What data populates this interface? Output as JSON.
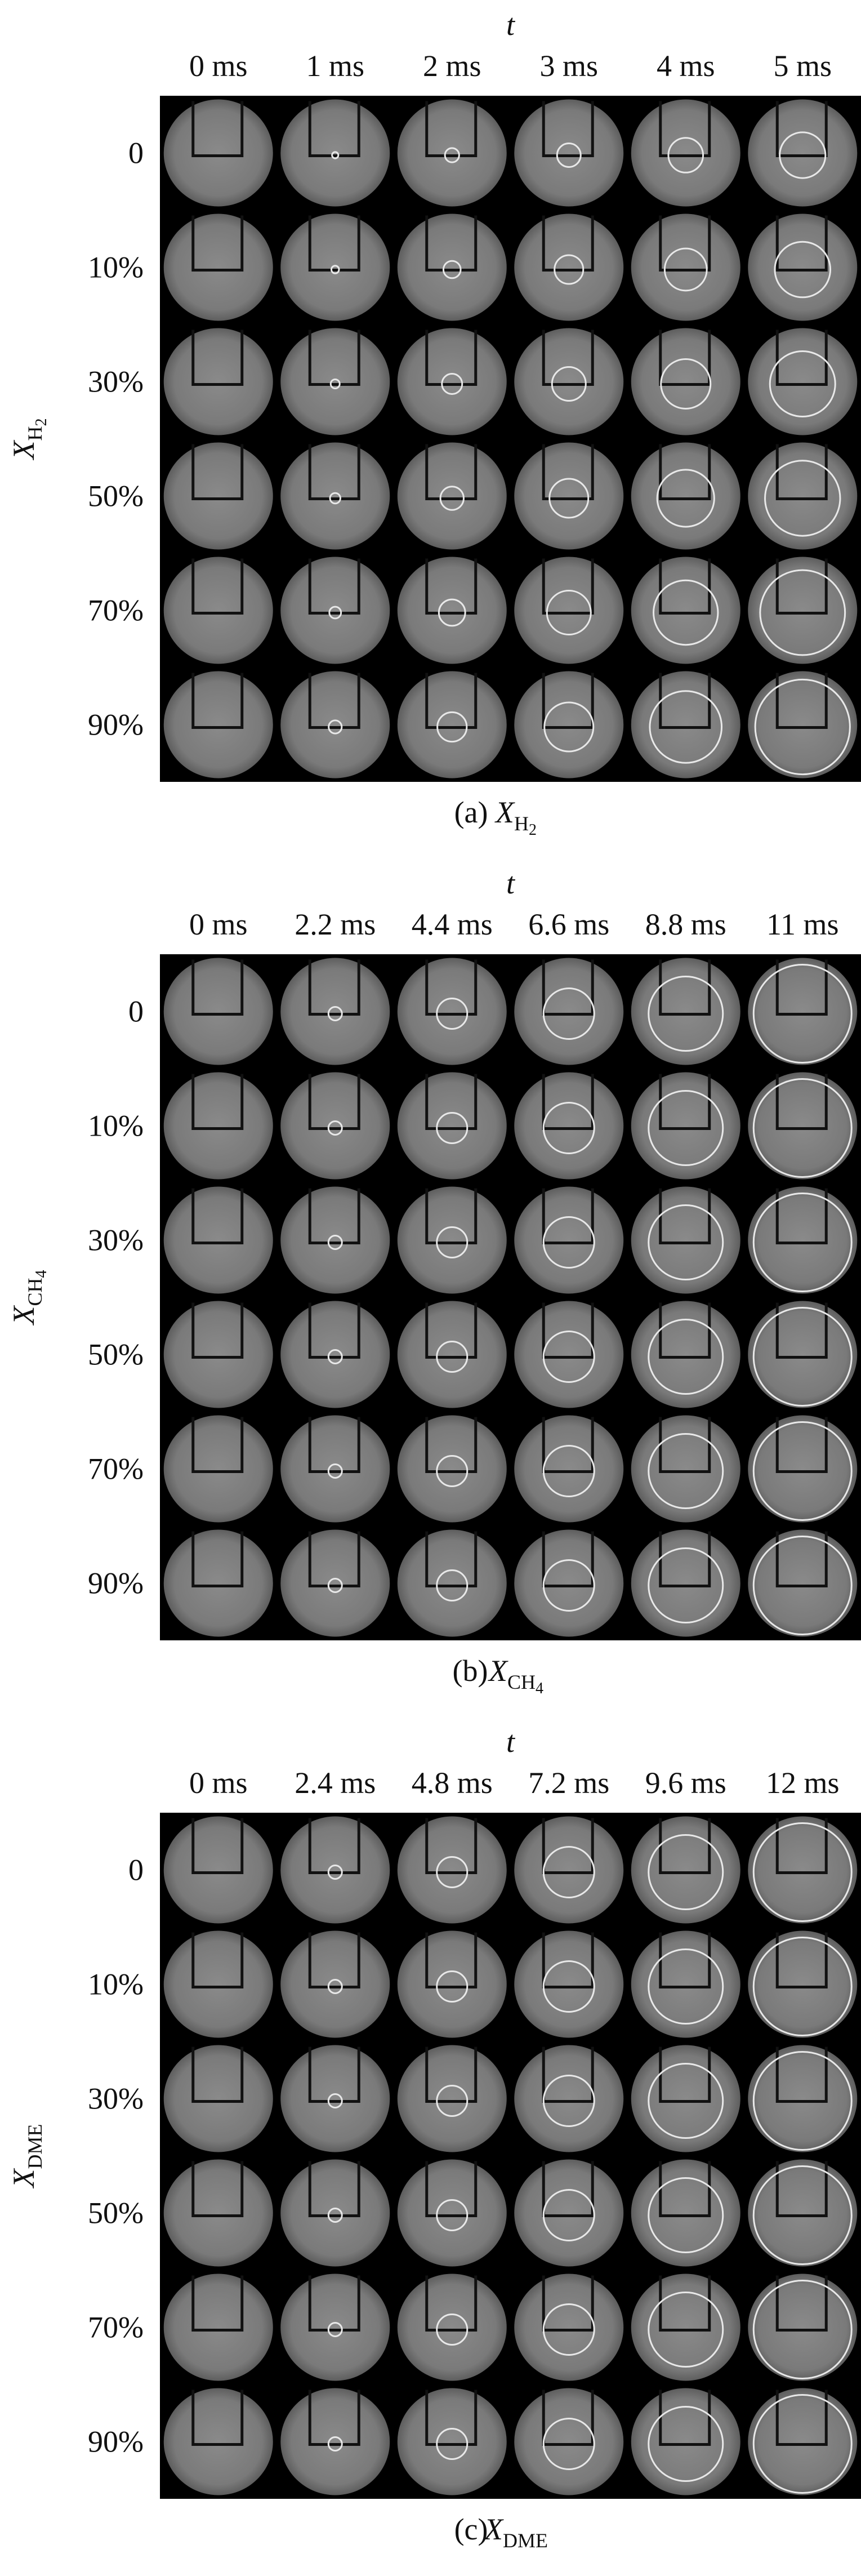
{
  "panels": [
    {
      "axis_label": "t",
      "times": [
        "0 ms",
        "1 ms",
        "2 ms",
        "3 ms",
        "4 ms",
        "5 ms"
      ],
      "y_label": {
        "symbol": "X",
        "subscript": [
          "H",
          "2"
        ]
      },
      "rows": [
        "0",
        "10%",
        "30%",
        "50%",
        "70%",
        "90%"
      ],
      "caption": {
        "prefix": "(a)",
        "symbol": "X",
        "subscript": [
          "H",
          "2"
        ]
      }
    },
    {
      "axis_label": "t",
      "times": [
        "0 ms",
        "2.2 ms",
        "4.4 ms",
        "6.6 ms",
        "8.8 ms",
        "11 ms"
      ],
      "y_label": {
        "symbol": "X",
        "subscript": [
          "CH",
          "4"
        ]
      },
      "rows": [
        "0",
        "10%",
        "30%",
        "50%",
        "70%",
        "90%"
      ],
      "caption": {
        "prefix": "(b)",
        "symbol": "X",
        "subscript": [
          "CH",
          "4"
        ]
      }
    },
    {
      "axis_label": "t",
      "times": [
        "0 ms",
        "2.4 ms",
        "4.8 ms",
        "7.2 ms",
        "9.6 ms",
        "12 ms"
      ],
      "y_label": {
        "symbol": "X",
        "subscript": [
          "DME"
        ]
      },
      "rows": [
        "0",
        "10%",
        "30%",
        "50%",
        "70%",
        "90%"
      ],
      "caption": {
        "prefix": "(c)",
        "symbol": "X",
        "subscript": [
          "DME"
        ]
      }
    }
  ]
}
